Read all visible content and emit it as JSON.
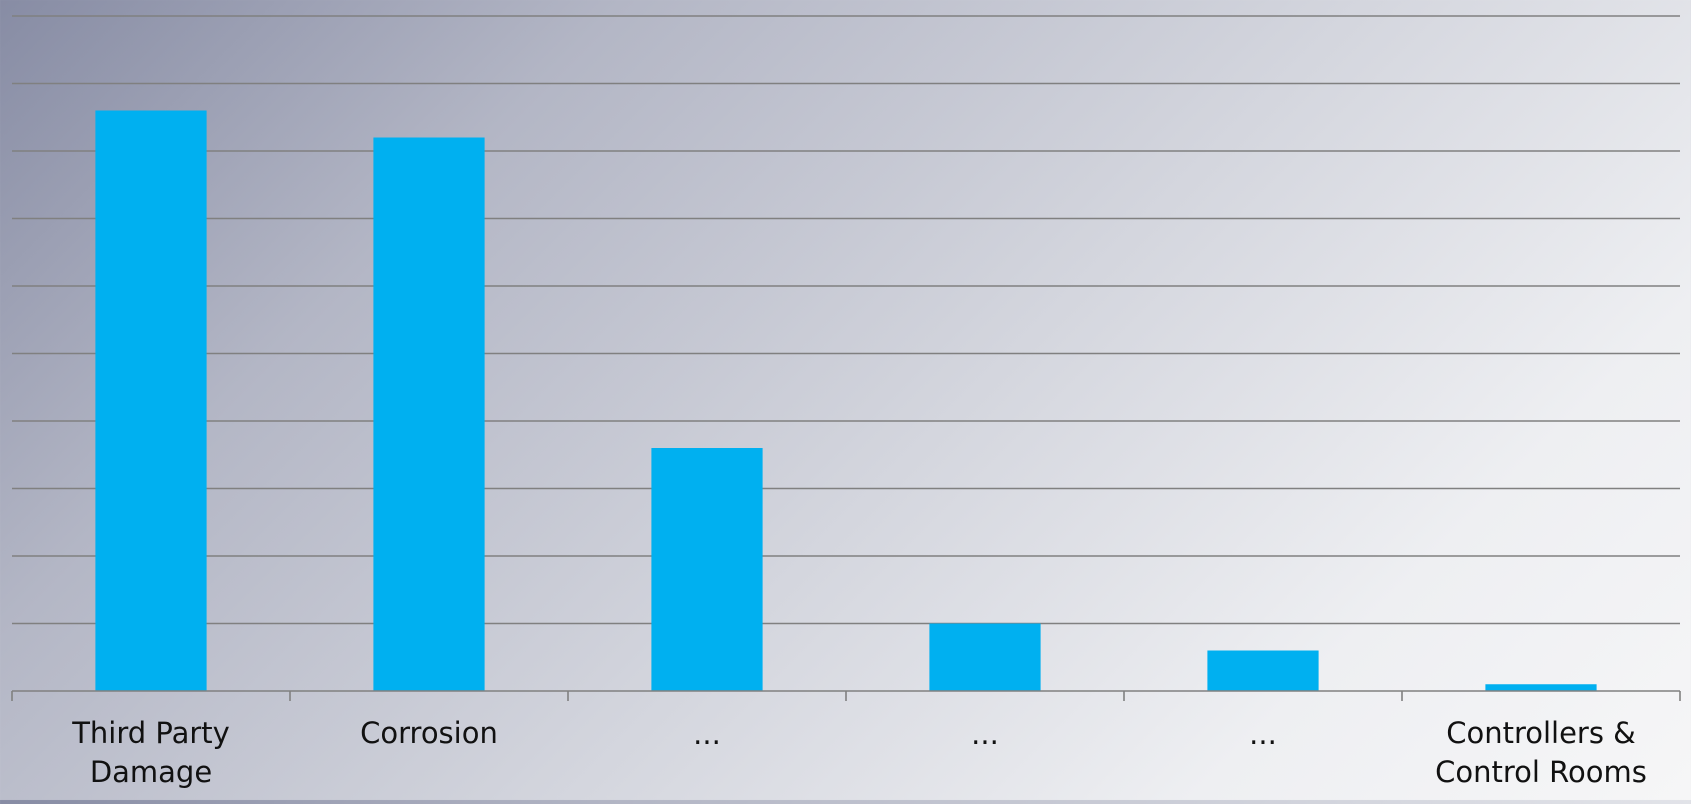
{
  "chart_data": {
    "type": "bar",
    "title": "",
    "xlabel": "",
    "ylabel": "",
    "categories": [
      [
        "Third Party",
        "Damage"
      ],
      [
        "Corrosion"
      ],
      [
        "..."
      ],
      [
        "..."
      ],
      [
        "..."
      ],
      [
        "Controllers &",
        "Control Rooms"
      ]
    ],
    "values": [
      8.6,
      8.2,
      3.6,
      1.0,
      0.6,
      0.1
    ],
    "ylim": [
      0,
      10.2
    ],
    "grid": true,
    "y_tick_labels_shown": false,
    "legend": "none",
    "bar_color": "#00b0f0",
    "gridline_color": "#808080"
  }
}
